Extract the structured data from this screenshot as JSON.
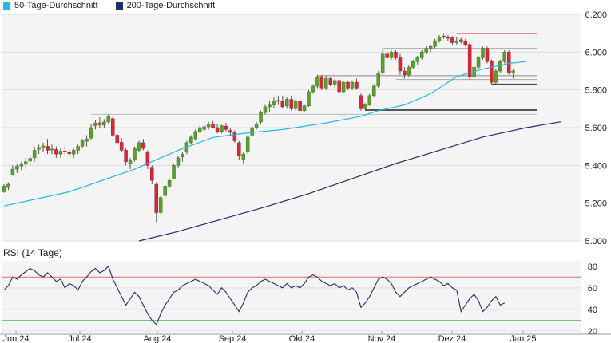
{
  "legend": {
    "sma50": {
      "label": "50-Tage-Durchschnitt",
      "color": "#29b6e8"
    },
    "sma200": {
      "label": "200-Tage-Durchschnitt",
      "color": "#1f2f6e"
    }
  },
  "rsi_title": "RSI (14 Tage)",
  "chart_data": [
    {
      "type": "candlestick",
      "y_ticks": [
        "6.200",
        "6.000",
        "5.800",
        "5.600",
        "5.400",
        "5.200",
        "5.000"
      ],
      "ylim": [
        5000,
        6200
      ],
      "x_ticks": [
        "Jun 24",
        "Jul 24",
        "Aug 24",
        "Sep 24",
        "Okt 24",
        "Nov 24",
        "Dez 24",
        "Jan 25"
      ],
      "colors": {
        "up": "#5aa02c",
        "down": "#d9263a",
        "wick": "#555555"
      },
      "ohlc": [
        [
          5260,
          5300,
          5255,
          5290
        ],
        [
          5283,
          5310,
          5270,
          5300
        ],
        [
          5350,
          5400,
          5345,
          5380
        ],
        [
          5380,
          5405,
          5360,
          5395
        ],
        [
          5396,
          5420,
          5374,
          5404
        ],
        [
          5406,
          5440,
          5380,
          5420
        ],
        [
          5423,
          5455,
          5400,
          5437
        ],
        [
          5440,
          5500,
          5420,
          5480
        ],
        [
          5485,
          5510,
          5460,
          5495
        ],
        [
          5492,
          5520,
          5470,
          5503
        ],
        [
          5501,
          5540,
          5460,
          5480
        ],
        [
          5482,
          5510,
          5460,
          5486
        ],
        [
          5484,
          5500,
          5440,
          5460
        ],
        [
          5460,
          5490,
          5440,
          5475
        ],
        [
          5476,
          5500,
          5455,
          5470
        ],
        [
          5468,
          5485,
          5450,
          5462
        ],
        [
          5460,
          5490,
          5440,
          5480
        ],
        [
          5480,
          5510,
          5460,
          5500
        ],
        [
          5502,
          5540,
          5490,
          5530
        ],
        [
          5528,
          5560,
          5500,
          5540
        ],
        [
          5545,
          5620,
          5535,
          5600
        ],
        [
          5610,
          5640,
          5590,
          5625
        ],
        [
          5625,
          5655,
          5600,
          5615
        ],
        [
          5614,
          5645,
          5600,
          5630
        ],
        [
          5630,
          5670,
          5620,
          5660
        ],
        [
          5648,
          5660,
          5550,
          5560
        ],
        [
          5560,
          5580,
          5510,
          5520
        ],
        [
          5522,
          5545,
          5470,
          5480
        ],
        [
          5480,
          5490,
          5400,
          5420
        ],
        [
          5410,
          5440,
          5380,
          5425
        ],
        [
          5430,
          5500,
          5420,
          5490
        ],
        [
          5480,
          5530,
          5470,
          5520
        ],
        [
          5520,
          5540,
          5480,
          5490
        ],
        [
          5470,
          5480,
          5380,
          5400
        ],
        [
          5390,
          5400,
          5300,
          5320
        ],
        [
          5300,
          5310,
          5100,
          5150
        ],
        [
          5150,
          5240,
          5140,
          5230
        ],
        [
          5240,
          5300,
          5230,
          5290
        ],
        [
          5290,
          5330,
          5280,
          5320
        ],
        [
          5330,
          5410,
          5325,
          5400
        ],
        [
          5400,
          5450,
          5390,
          5440
        ],
        [
          5445,
          5470,
          5420,
          5460
        ],
        [
          5470,
          5530,
          5460,
          5520
        ],
        [
          5520,
          5560,
          5510,
          5550
        ],
        [
          5540,
          5590,
          5530,
          5580
        ],
        [
          5580,
          5610,
          5570,
          5600
        ],
        [
          5590,
          5615,
          5580,
          5605
        ],
        [
          5604,
          5630,
          5590,
          5620
        ],
        [
          5618,
          5635,
          5595,
          5600
        ],
        [
          5600,
          5620,
          5570,
          5580
        ],
        [
          5580,
          5615,
          5570,
          5610
        ],
        [
          5608,
          5625,
          5580,
          5590
        ],
        [
          5585,
          5600,
          5560,
          5575
        ],
        [
          5575,
          5585,
          5520,
          5530
        ],
        [
          5520,
          5530,
          5430,
          5450
        ],
        [
          5430,
          5470,
          5410,
          5460
        ],
        [
          5470,
          5560,
          5460,
          5550
        ],
        [
          5560,
          5610,
          5550,
          5600
        ],
        [
          5600,
          5630,
          5590,
          5620
        ],
        [
          5630,
          5690,
          5620,
          5680
        ],
        [
          5680,
          5720,
          5670,
          5710
        ],
        [
          5710,
          5740,
          5680,
          5720
        ],
        [
          5720,
          5760,
          5700,
          5740
        ],
        [
          5740,
          5770,
          5720,
          5745
        ],
        [
          5740,
          5770,
          5700,
          5710
        ],
        [
          5715,
          5760,
          5700,
          5750
        ],
        [
          5750,
          5770,
          5690,
          5700
        ],
        [
          5700,
          5750,
          5690,
          5740
        ],
        [
          5740,
          5760,
          5680,
          5690
        ],
        [
          5690,
          5720,
          5680,
          5715
        ],
        [
          5715,
          5800,
          5710,
          5790
        ],
        [
          5790,
          5830,
          5780,
          5820
        ],
        [
          5820,
          5880,
          5810,
          5870
        ],
        [
          5870,
          5880,
          5800,
          5810
        ],
        [
          5810,
          5875,
          5800,
          5860
        ],
        [
          5860,
          5870,
          5820,
          5830
        ],
        [
          5830,
          5860,
          5810,
          5850
        ],
        [
          5850,
          5860,
          5780,
          5790
        ],
        [
          5790,
          5845,
          5785,
          5840
        ],
        [
          5840,
          5850,
          5800,
          5810
        ],
        [
          5810,
          5850,
          5800,
          5840
        ],
        [
          5840,
          5860,
          5800,
          5810
        ],
        [
          5770,
          5780,
          5690,
          5700
        ],
        [
          5700,
          5730,
          5690,
          5725
        ],
        [
          5720,
          5780,
          5715,
          5770
        ],
        [
          5770,
          5830,
          5760,
          5820
        ],
        [
          5820,
          5900,
          5810,
          5890
        ],
        [
          5890,
          6020,
          5880,
          5990
        ],
        [
          5990,
          6020,
          5960,
          5970
        ],
        [
          5970,
          6010,
          5960,
          6000
        ],
        [
          6000,
          6010,
          5960,
          5970
        ],
        [
          5970,
          5990,
          5880,
          5900
        ],
        [
          5900,
          5920,
          5860,
          5880
        ],
        [
          5880,
          5930,
          5870,
          5920
        ],
        [
          5920,
          5960,
          5910,
          5950
        ],
        [
          5950,
          5980,
          5930,
          5970
        ],
        [
          5970,
          6010,
          5960,
          6000
        ],
        [
          6000,
          6030,
          5990,
          6020
        ],
        [
          6020,
          6040,
          6000,
          6030
        ],
        [
          6030,
          6070,
          6020,
          6060
        ],
        [
          6060,
          6090,
          6050,
          6080
        ],
        [
          6085,
          6100,
          6070,
          6080
        ],
        [
          6078,
          6090,
          6060,
          6075
        ],
        [
          6075,
          6085,
          6040,
          6050
        ],
        [
          6050,
          6080,
          6040,
          6060
        ],
        [
          6065,
          6075,
          6045,
          6055
        ],
        [
          6055,
          6070,
          6030,
          6040
        ],
        [
          6040,
          6050,
          5850,
          5870
        ],
        [
          5870,
          5930,
          5860,
          5920
        ],
        [
          5920,
          5980,
          5910,
          5970
        ],
        [
          5970,
          6030,
          5960,
          6020
        ],
        [
          6020,
          6030,
          5940,
          5950
        ],
        [
          5950,
          5960,
          5830,
          5840
        ],
        [
          5840,
          5910,
          5830,
          5900
        ],
        [
          5900,
          5960,
          5890,
          5950
        ],
        [
          5950,
          6010,
          5940,
          6000
        ],
        [
          6000,
          6010,
          5880,
          5890
        ],
        [
          5890,
          5910,
          5860,
          5900
        ]
      ],
      "sma50": [
        [
          0,
          5185
        ],
        [
          15,
          5260
        ],
        [
          30,
          5380
        ],
        [
          34,
          5420
        ],
        [
          40,
          5480
        ],
        [
          48,
          5548
        ],
        [
          56,
          5572
        ],
        [
          64,
          5590
        ],
        [
          74,
          5625
        ],
        [
          82,
          5660
        ],
        [
          86,
          5690
        ],
        [
          92,
          5720
        ],
        [
          98,
          5780
        ],
        [
          104,
          5870
        ],
        [
          110,
          5910
        ],
        [
          116,
          5940
        ],
        [
          120,
          5950
        ]
      ],
      "sma200": [
        [
          31,
          5000
        ],
        [
          40,
          5050
        ],
        [
          50,
          5115
        ],
        [
          60,
          5180
        ],
        [
          70,
          5250
        ],
        [
          80,
          5330
        ],
        [
          90,
          5410
        ],
        [
          100,
          5480
        ],
        [
          110,
          5550
        ],
        [
          120,
          5600
        ],
        [
          125,
          5620
        ],
        [
          128,
          5631
        ]
      ],
      "levels": [
        {
          "value": 6100,
          "color": "#e08080",
          "from": 104,
          "width": 1
        },
        {
          "value": 6020,
          "color": "#aaaaaa",
          "from": 87,
          "width": 1
        },
        {
          "value": 5875,
          "color": "#888888",
          "from": 72,
          "width": 1
        },
        {
          "value": 5855,
          "color": "#aaaaaa",
          "from": 90,
          "width": 1
        },
        {
          "value": 5830,
          "color": "#444444",
          "from": 112,
          "width": 1.5
        },
        {
          "value": 5693,
          "color": "#555555",
          "from": 83,
          "width": 2
        },
        {
          "value": 5670,
          "color": "#bbbbbb",
          "from": 20,
          "width": 1
        }
      ]
    },
    {
      "type": "line",
      "name": "RSI (14 Tage)",
      "y_ticks": [
        "80",
        "60",
        "40",
        "20"
      ],
      "ylim": [
        20,
        85
      ],
      "levels": [
        70,
        30
      ],
      "color": "#1f2f6e",
      "values": [
        58,
        62,
        70,
        68,
        72,
        75,
        78,
        76,
        72,
        70,
        74,
        70,
        66,
        68,
        60,
        64,
        62,
        58,
        66,
        70,
        75,
        78,
        74,
        76,
        80,
        68,
        60,
        52,
        44,
        50,
        56,
        52,
        44,
        36,
        30,
        26,
        36,
        44,
        50,
        56,
        58,
        62,
        64,
        66,
        68,
        66,
        64,
        62,
        58,
        54,
        60,
        56,
        50,
        44,
        38,
        46,
        56,
        60,
        62,
        66,
        68,
        66,
        64,
        62,
        60,
        64,
        60,
        62,
        60,
        64,
        70,
        72,
        70,
        66,
        64,
        62,
        64,
        60,
        62,
        58,
        60,
        56,
        42,
        46,
        52,
        60,
        68,
        70,
        68,
        64,
        56,
        52,
        56,
        60,
        62,
        64,
        66,
        68,
        70,
        68,
        66,
        62,
        64,
        60,
        58,
        38,
        44,
        50,
        54,
        48,
        38,
        42,
        48,
        52,
        44,
        46
      ]
    }
  ]
}
